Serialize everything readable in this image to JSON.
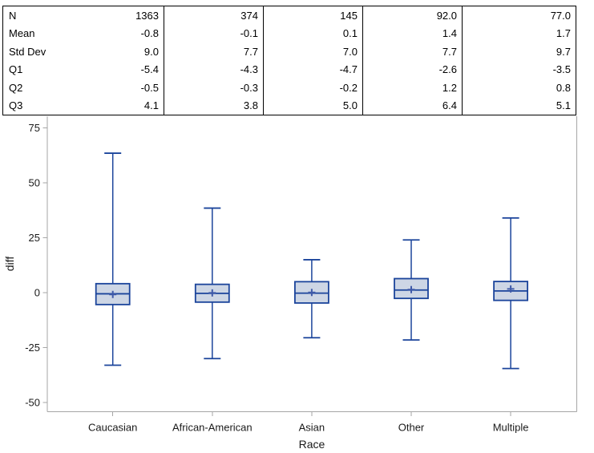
{
  "table": {
    "rows": [
      {
        "label": "N",
        "values": [
          "1363",
          "374",
          "145",
          "92.0",
          "77.0"
        ]
      },
      {
        "label": "Mean",
        "values": [
          "-0.8",
          "-0.1",
          "0.1",
          "1.4",
          "1.7"
        ]
      },
      {
        "label": "Std Dev",
        "values": [
          "9.0",
          "7.7",
          "7.0",
          "7.7",
          "9.7"
        ]
      },
      {
        "label": "Q1",
        "values": [
          "-5.4",
          "-4.3",
          "-4.7",
          "-2.6",
          "-3.5"
        ]
      },
      {
        "label": "Q2",
        "values": [
          "-0.5",
          "-0.3",
          "-0.2",
          "1.2",
          "0.8"
        ]
      },
      {
        "label": "Q3",
        "values": [
          "4.1",
          "3.8",
          "5.0",
          "6.4",
          "5.1"
        ]
      }
    ]
  },
  "chart_data": {
    "type": "boxplot",
    "xlabel": "Race",
    "ylabel": "diff",
    "categories": [
      "Caucasian",
      "African-American",
      "Asian",
      "Other",
      "Multiple"
    ],
    "ytick_labels": [
      "75",
      "50",
      "25",
      "0",
      "-25",
      "-50"
    ],
    "yticks": [
      75,
      50,
      25,
      0,
      -25,
      -50
    ],
    "ylim": [
      -54.1,
      80.3
    ],
    "grid": false,
    "series": [
      {
        "category": "Caucasian",
        "n": 1363,
        "mean": -0.8,
        "std_dev": 9.0,
        "q1": -5.4,
        "median": -0.5,
        "q3": 4.1,
        "whisker_low": -33.0,
        "whisker_high": 63.5
      },
      {
        "category": "African-American",
        "n": 374,
        "mean": -0.1,
        "std_dev": 7.7,
        "q1": -4.3,
        "median": -0.3,
        "q3": 3.8,
        "whisker_low": -30.0,
        "whisker_high": 38.5
      },
      {
        "category": "Asian",
        "n": 145,
        "mean": 0.1,
        "std_dev": 7.0,
        "q1": -4.7,
        "median": -0.2,
        "q3": 5.0,
        "whisker_low": -20.5,
        "whisker_high": 15.0
      },
      {
        "category": "Other",
        "n": 92.0,
        "mean": 1.4,
        "std_dev": 7.7,
        "q1": -2.6,
        "median": 1.2,
        "q3": 6.4,
        "whisker_low": -21.5,
        "whisker_high": 24.0
      },
      {
        "category": "Multiple",
        "n": 77.0,
        "mean": 1.7,
        "std_dev": 9.7,
        "q1": -3.5,
        "median": 0.8,
        "q3": 5.1,
        "whisker_low": -34.5,
        "whisker_high": 34.0
      }
    ]
  },
  "colors": {
    "box_fill": "#cdd6e5",
    "box_stroke": "#1b449b",
    "mean_marker": "#3f5aa9",
    "axis_line": "#a6a6a6",
    "axis_text": "#1a1a1a",
    "table_border": "#000000",
    "table_text": "#000000",
    "background": "#ffffff"
  }
}
